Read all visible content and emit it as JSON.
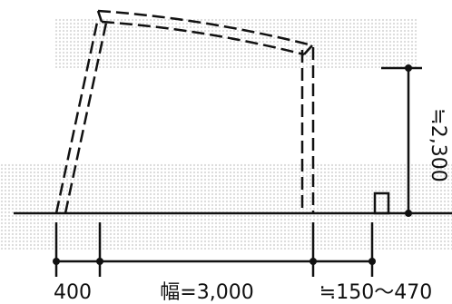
{
  "dimensions": {
    "left_offset": "400",
    "width": "幅=3,000",
    "overhang": "≒150～470",
    "height": "≒2,300"
  }
}
